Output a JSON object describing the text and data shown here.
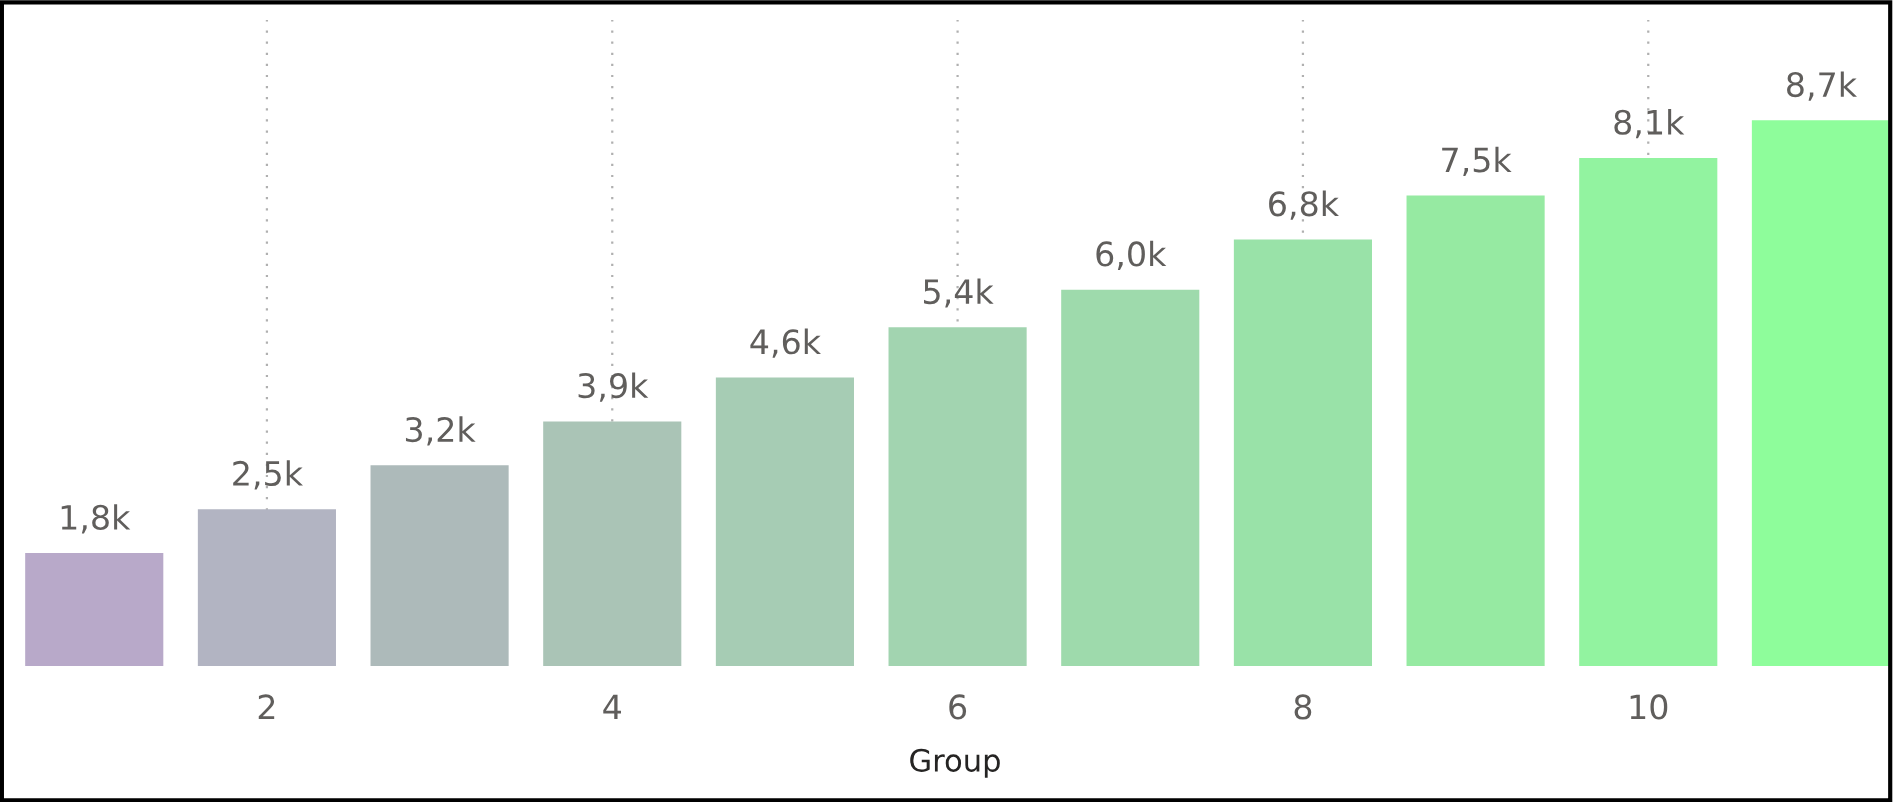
{
  "chart_data": {
    "type": "bar",
    "xlabel": "Group",
    "x": [
      1,
      2,
      3,
      4,
      5,
      6,
      7,
      8,
      9,
      10,
      11
    ],
    "values": [
      1800,
      2500,
      3200,
      3900,
      4600,
      5400,
      6000,
      6800,
      7500,
      8100,
      8700
    ],
    "value_labels": [
      "1,8k",
      "2,5k",
      "3,2k",
      "3,9k",
      "4,6k",
      "5,4k",
      "6,0k",
      "6,8k",
      "7,5k",
      "8,1k",
      "8,7k"
    ],
    "colors": [
      "#b8a9c9",
      "#b2b4c2",
      "#adbaba",
      "#aac4b6",
      "#a6ccb4",
      "#a2d4b0",
      "#9edaac",
      "#99e2a8",
      "#96eaa2",
      "#92f3a0",
      "#8efd9b"
    ],
    "xlim": [
      0.57,
      11.4
    ],
    "ylim": [
      0,
      10300
    ],
    "xticks": [
      2,
      4,
      6,
      8,
      10
    ],
    "grid": "x",
    "tick_labels": "x"
  }
}
